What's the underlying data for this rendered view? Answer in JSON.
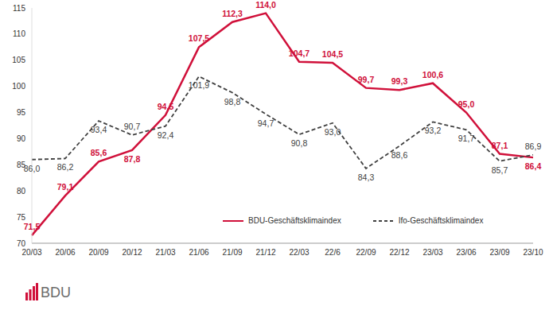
{
  "chart_data": {
    "type": "line",
    "logo": "BDU",
    "categories": [
      "20/03",
      "20/06",
      "20/09",
      "20/12",
      "21/03",
      "21/06",
      "21/09",
      "21/12",
      "22/03",
      "22/6",
      "22/09",
      "22/12",
      "23/03",
      "23/06",
      "23/09",
      "23/10"
    ],
    "series": [
      {
        "name": "BDU-Geschäftsklimaindex",
        "color": "#d0103a",
        "line_style": "solid",
        "values": [
          71.5,
          79.1,
          85.6,
          87.8,
          94.5,
          107.5,
          112.3,
          114.0,
          104.7,
          104.5,
          99.7,
          99.3,
          100.6,
          95.0,
          87.1,
          86.4
        ],
        "value_labels": [
          "71,5",
          "79,1",
          "85,6",
          "87,8",
          "94,5",
          "107,5",
          "112,3",
          "114,0",
          "104,7",
          "104,5",
          "99,7",
          "99,3",
          "100,6",
          "95,0",
          "87,1",
          "86,4"
        ]
      },
      {
        "name": "Ifo-Geschäftsklimaindex",
        "color": "#404040",
        "line_style": "dashed",
        "values": [
          86.0,
          86.2,
          93.4,
          90.7,
          92.4,
          101.9,
          98.8,
          94.7,
          90.8,
          93.0,
          84.3,
          88.6,
          93.2,
          91.7,
          85.7,
          86.9
        ],
        "value_labels": [
          "86,0",
          "86,2",
          "93,4",
          "90,7",
          "92,4",
          "101,9",
          "98,8",
          "94,7",
          "90,8",
          "93,0",
          "84,3",
          "88,6",
          "93,2",
          "91,7",
          "85,7",
          "86,9"
        ]
      }
    ],
    "ylim": [
      70,
      115
    ],
    "yticks": [
      70,
      75,
      80,
      85,
      90,
      95,
      100,
      105,
      110,
      115
    ],
    "grid": false,
    "legend": "bottom right",
    "data_labels": true
  }
}
